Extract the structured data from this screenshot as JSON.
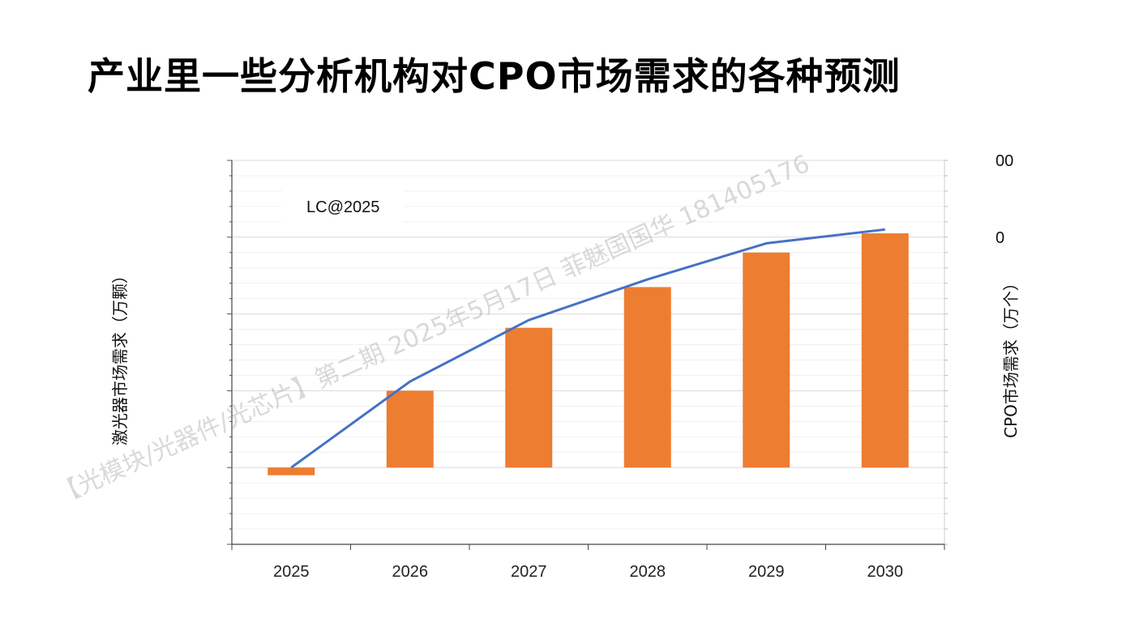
{
  "page": {
    "title": "产业里一些分析机构对CPO市场需求的各种预测"
  },
  "watermark": "【光模块/光器件/光芯片】第二期   2025年5月17日   菲魅国国华 181405176",
  "chart_data": {
    "type": "bar-line",
    "categories": [
      "2025",
      "2026",
      "2027",
      "2028",
      "2029",
      "2030"
    ],
    "bar_series": {
      "values": [
        -0.1,
        1.0,
        1.82,
        2.35,
        2.8,
        3.05
      ],
      "color": "#ed7d31"
    },
    "line_series": {
      "values": [
        0.0,
        1.12,
        1.92,
        2.45,
        2.92,
        3.1
      ],
      "color": "#4472c4"
    },
    "ylim_left": [
      -1,
      4
    ],
    "ylim_right": [
      -1,
      4
    ],
    "ylabel_left": "激光器市场需求（万颗）",
    "ylabel_right": "CPO市场需求（万个）",
    "right_tick_labels": [
      "",
      "",
      "",
      "",
      "0",
      "00"
    ],
    "annotation": "LC@2025",
    "grid": true
  }
}
